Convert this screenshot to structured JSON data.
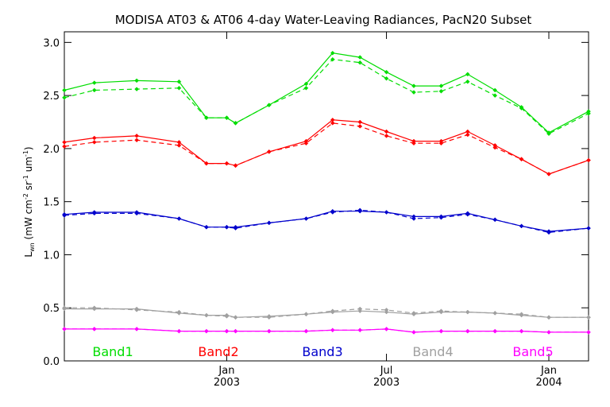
{
  "chart_data": {
    "type": "line",
    "title": "MODISA AT03 & AT06 4-day Water-Leaving Radiances, PacN20 Subset",
    "ylabel_parts": {
      "base": "L",
      "sub": "wn",
      "open": " (mW cm",
      "exp1": "-2",
      "mid1": " sr",
      "exp2": "-1",
      "mid2": " um",
      "exp3": "-1",
      "close": ")"
    },
    "xlabel": "",
    "ylim": [
      0.0,
      3.1
    ],
    "y_ticks": [
      "0.0",
      "0.5",
      "1.0",
      "1.5",
      "2.0",
      "2.5",
      "3.0"
    ],
    "x_range": [
      "2002-07-01",
      "2004-02-15"
    ],
    "x_ticks": [
      {
        "date": "2003-01-01",
        "line1": "Jan",
        "line2": "2003"
      },
      {
        "date": "2003-07-01",
        "line1": "Jul",
        "line2": "2003"
      },
      {
        "date": "2004-01-01",
        "line1": "Jan",
        "line2": "2004"
      }
    ],
    "x": [
      "2002-07-01",
      "2002-08-04",
      "2002-09-21",
      "2002-11-08",
      "2002-12-09",
      "2003-01-01",
      "2003-01-11",
      "2003-02-18",
      "2003-04-01",
      "2003-05-01",
      "2003-06-01",
      "2003-07-01",
      "2003-08-01",
      "2003-09-01",
      "2003-10-01",
      "2003-11-01",
      "2003-12-01",
      "2004-01-01",
      "2004-02-15"
    ],
    "series": [
      {
        "color": "#00dd00",
        "style": "solid",
        "values": [
          2.55,
          2.62,
          2.64,
          2.63,
          2.29,
          2.29,
          2.24,
          2.41,
          2.61,
          2.9,
          2.86,
          2.72,
          2.59,
          2.59,
          2.7,
          2.55,
          2.39,
          2.15,
          2.35
        ]
      },
      {
        "color": "#00dd00",
        "style": "dashed",
        "values": [
          2.48,
          2.55,
          2.56,
          2.57,
          2.29,
          2.29,
          2.24,
          2.41,
          2.57,
          2.84,
          2.81,
          2.66,
          2.53,
          2.54,
          2.63,
          2.5,
          2.38,
          2.14,
          2.33
        ]
      },
      {
        "color": "#ff0000",
        "style": "solid",
        "values": [
          2.06,
          2.1,
          2.12,
          2.06,
          1.86,
          1.86,
          1.84,
          1.97,
          2.07,
          2.27,
          2.25,
          2.16,
          2.07,
          2.07,
          2.16,
          2.03,
          1.9,
          1.76,
          1.89
        ]
      },
      {
        "color": "#ff0000",
        "style": "dashed",
        "values": [
          2.02,
          2.06,
          2.08,
          2.03,
          1.86,
          1.86,
          1.84,
          1.97,
          2.05,
          2.24,
          2.21,
          2.12,
          2.05,
          2.05,
          2.13,
          2.01,
          1.9,
          1.76,
          1.89
        ]
      },
      {
        "color": "#0000cc",
        "style": "solid",
        "values": [
          1.38,
          1.4,
          1.4,
          1.34,
          1.26,
          1.26,
          1.26,
          1.3,
          1.34,
          1.41,
          1.41,
          1.4,
          1.36,
          1.36,
          1.39,
          1.33,
          1.27,
          1.22,
          1.25
        ]
      },
      {
        "color": "#0000cc",
        "style": "dashed",
        "values": [
          1.37,
          1.39,
          1.39,
          1.34,
          1.26,
          1.26,
          1.25,
          1.3,
          1.34,
          1.4,
          1.42,
          1.4,
          1.34,
          1.35,
          1.38,
          1.33,
          1.27,
          1.21,
          1.25
        ]
      },
      {
        "color": "#a0a0a0",
        "style": "solid",
        "values": [
          0.49,
          0.49,
          0.49,
          0.45,
          0.43,
          0.43,
          0.41,
          0.42,
          0.44,
          0.46,
          0.47,
          0.46,
          0.44,
          0.46,
          0.46,
          0.45,
          0.43,
          0.41,
          0.41
        ]
      },
      {
        "color": "#a0a0a0",
        "style": "dashed",
        "values": [
          0.5,
          0.5,
          0.48,
          0.46,
          0.43,
          0.42,
          0.41,
          0.41,
          0.44,
          0.47,
          0.49,
          0.48,
          0.45,
          0.47,
          0.46,
          0.45,
          0.44,
          0.41,
          0.41
        ]
      },
      {
        "color": "#ff00ff",
        "style": "solid",
        "values": [
          0.3,
          0.3,
          0.3,
          0.28,
          0.28,
          0.28,
          0.28,
          0.28,
          0.28,
          0.29,
          0.29,
          0.3,
          0.27,
          0.28,
          0.28,
          0.28,
          0.28,
          0.27,
          0.27
        ]
      },
      {
        "color": "#ff00ff",
        "style": "dashed",
        "values": [
          0.3,
          0.3,
          0.3,
          0.28,
          0.28,
          0.28,
          0.28,
          0.28,
          0.28,
          0.29,
          0.29,
          0.3,
          0.27,
          0.28,
          0.28,
          0.28,
          0.28,
          0.27,
          0.27
        ]
      }
    ],
    "legend": [
      {
        "label": "Band1",
        "color": "#00dd00"
      },
      {
        "label": "Band2",
        "color": "#ff0000"
      },
      {
        "label": "Band3",
        "color": "#0000cc"
      },
      {
        "label": "Band4",
        "color": "#a0a0a0"
      },
      {
        "label": "Band5",
        "color": "#ff00ff"
      }
    ],
    "legend_placement": "bottom-inside",
    "grid": false
  }
}
